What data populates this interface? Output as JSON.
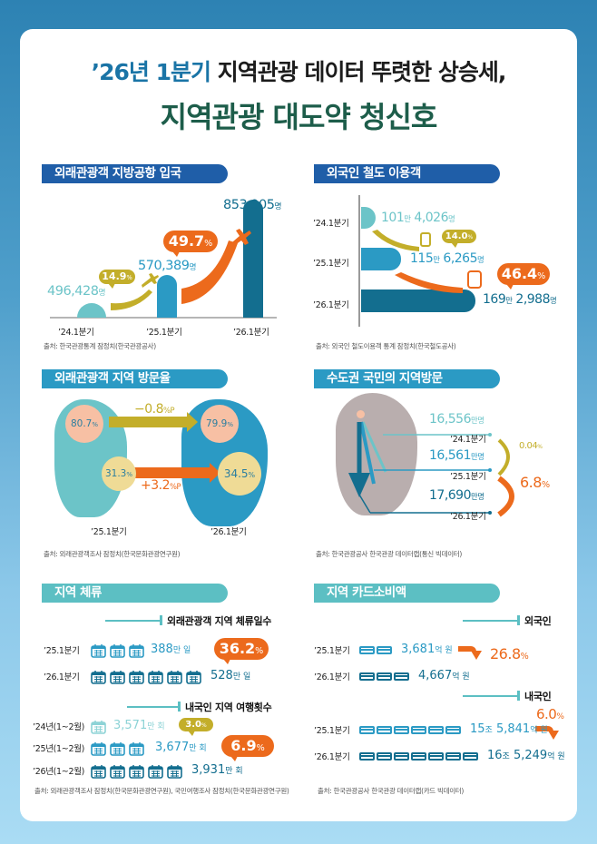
{
  "header": {
    "title_highlight": "’26년 1분기",
    "title_rest": " 지역관광 데이터 뚜렷한 상승세,",
    "subtitle": "지역관광 대도약 청신호"
  },
  "colors": {
    "deep_blue": "#1f5ea8",
    "cyan": "#2b9ac4",
    "teal": "#5cbfc3",
    "orange": "#ec6a1c",
    "olive": "#c3ae2a",
    "green_title": "#1d5d4a"
  },
  "sections": {
    "airport": {
      "title": "외래관광객 지방공항 입국",
      "quarters": [
        "’24.1분기",
        "’25.1분기",
        "’26.1분기"
      ],
      "values": [
        "496,428",
        "570,389",
        "853,905"
      ],
      "unit": "명",
      "growth": [
        {
          "value": "14.9",
          "unit": "%"
        },
        {
          "value": "49.7",
          "unit": "%"
        }
      ],
      "source": "출처: 한국관광통계 잠정치(한국관광공사)",
      "icon": "airplane-icon"
    },
    "rail": {
      "title": "외국인 철도 이용객",
      "quarters": [
        "’24.1분기",
        "’25.1분기",
        "’26.1분기"
      ],
      "values": [
        {
          "man": "101",
          "rest": "4,026"
        },
        {
          "man": "115",
          "rest": "6,265"
        },
        {
          "man": "169",
          "rest": "2,988"
        }
      ],
      "man_unit": "만",
      "unit": "명",
      "growth": [
        {
          "value": "14.0",
          "unit": "%"
        },
        {
          "value": "46.4",
          "unit": "%"
        }
      ],
      "source": "출처: 외국인 철도이용객 통계 잠정치(한국철도공사)",
      "icon": "train-icon"
    },
    "visit_rate": {
      "title": "외래관광객 지역 방문율",
      "left_quarter": "’25.1분기",
      "right_quarter": "’26.1분기",
      "left_top": {
        "value": "80.7",
        "unit": "%"
      },
      "left_bottom": {
        "value": "31.3",
        "unit": "%"
      },
      "right_top": {
        "value": "79.9",
        "unit": "%"
      },
      "right_bottom": {
        "value": "34.5",
        "unit": "%"
      },
      "change_top": {
        "value": "−0.8",
        "unit": "%P"
      },
      "change_bottom": {
        "value": "+3.2",
        "unit": "%P"
      },
      "source": "출처: 외래관광객조사 잠정치(한국문화관광연구원)"
    },
    "capital_visit": {
      "title": "수도권 국민의 지역방문",
      "rows": [
        {
          "value": "16,556",
          "unit": "만명",
          "quarter": "’24.1분기"
        },
        {
          "value": "16,561",
          "unit": "만명",
          "quarter": "’25.1분기"
        },
        {
          "value": "17,690",
          "unit": "만명",
          "quarter": "’26.1분기"
        }
      ],
      "growth": [
        {
          "value": "0.04",
          "unit": "%"
        },
        {
          "value": "6.8",
          "unit": "%"
        }
      ],
      "source": "출처: 한국관광공사 한국관광 데이터랩(통신 빅데이터)"
    },
    "stay": {
      "title": "지역 체류",
      "sub1_title": "외래관광객 지역 체류일수",
      "sub1_rows": [
        {
          "label": "’25.1분기",
          "icons": 3,
          "value": "388",
          "unit": "만 일"
        },
        {
          "label": "’26.1분기",
          "icons": 6,
          "value": "528",
          "unit": "만 일"
        }
      ],
      "sub1_growth": {
        "value": "36.2",
        "unit": "%"
      },
      "sub2_title": "내국인 지역 여행횟수",
      "sub2_rows": [
        {
          "label": "’24년(1~2월)",
          "icons": 1,
          "value": "3,571",
          "unit": "만 회"
        },
        {
          "label": "’25년(1~2월)",
          "icons": 3,
          "value": "3,677",
          "unit": "만 회"
        },
        {
          "label": "’26년(1~2월)",
          "icons": 5,
          "value": "3,931",
          "unit": "만 회"
        }
      ],
      "sub2_growth": [
        {
          "value": "3.0",
          "unit": "%"
        },
        {
          "value": "6.9",
          "unit": "%"
        }
      ],
      "source": "출처: 외래관광객조사 잠정치(한국문화관광연구원), 국민여행조사 잠정치(한국문화관광연구원)",
      "icon": "calendar-icon"
    },
    "card_spend": {
      "title": "지역 카드소비액",
      "sub1_title": "외국인",
      "sub1_rows": [
        {
          "label": "’25.1분기",
          "icons": 2,
          "value": "3,681",
          "unit": "억 원"
        },
        {
          "label": "’26.1분기",
          "icons": 3,
          "value": "4,667",
          "unit": "억 원"
        }
      ],
      "sub1_growth": {
        "value": "26.8",
        "unit": "%"
      },
      "sub2_title": "내국인",
      "sub2_rows": [
        {
          "label": "’25.1분기",
          "icons": 6,
          "jo": "15",
          "value": "5,841",
          "unit": "억 원"
        },
        {
          "label": "’26.1분기",
          "icons": 7,
          "jo": "16",
          "value": "5,249",
          "unit": "억 원"
        }
      ],
      "jo_unit": "조",
      "sub2_growth": {
        "value": "6.0",
        "unit": "%"
      },
      "source": "출처: 한국관광공사 한국관광 데이터랩(카드 빅데이터)",
      "icon": "credit-card-icon"
    }
  }
}
